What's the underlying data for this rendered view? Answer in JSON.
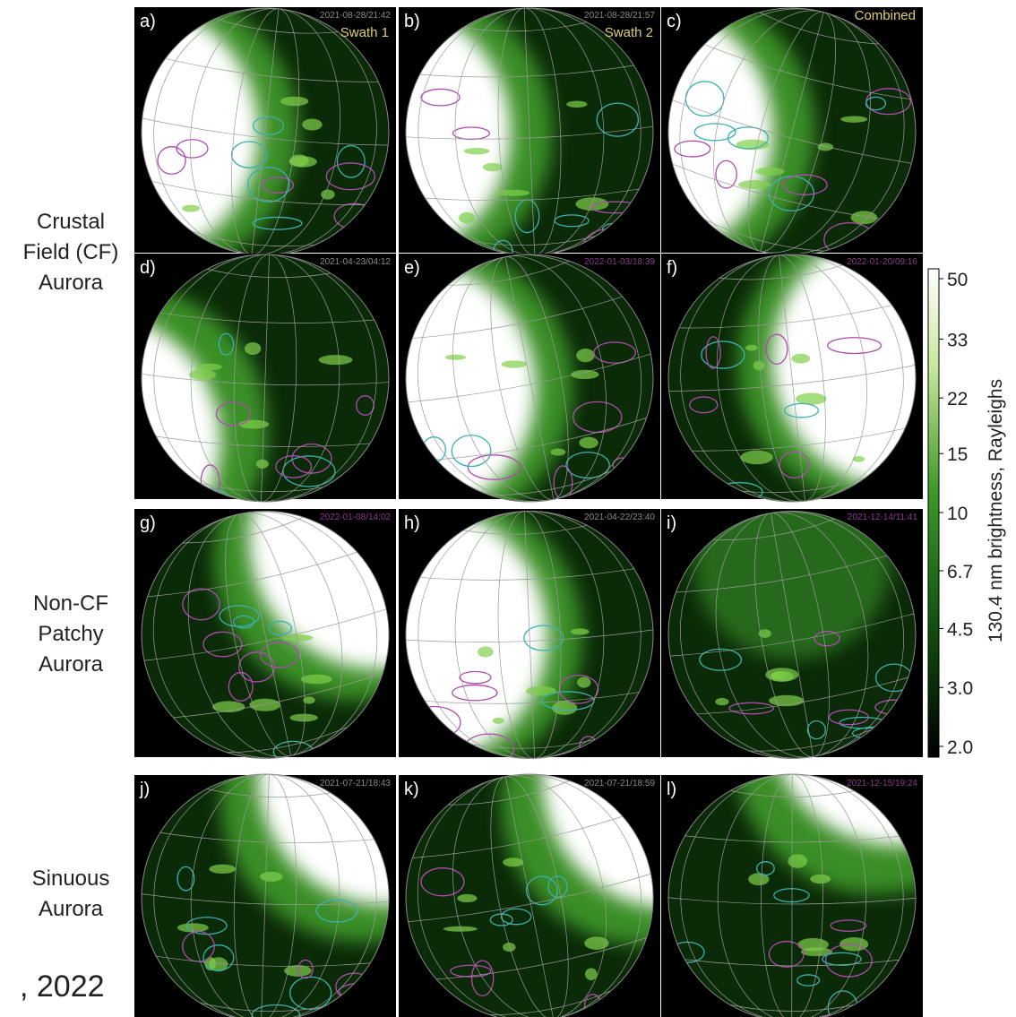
{
  "row_labels": [
    "Crustal Field (CF) Aurora",
    "Non-CF Patchy Aurora",
    "Sinuous Aurora"
  ],
  "footer": ", 2022",
  "panels": [
    {
      "label": "a)",
      "time": "2021-08-28/21:42",
      "note": "Swath 1",
      "time_color": "#8a8a8a"
    },
    {
      "label": "b)",
      "time": "2021-08-28/21:57",
      "note": "Swath 2",
      "time_color": "#8a8a8a"
    },
    {
      "label": "c)",
      "note": "Combined"
    },
    {
      "label": "d)",
      "time": "2021-04-23/04:12",
      "time_color": "#8a8a8a"
    },
    {
      "label": "e)",
      "time": "2022-01-03/18:39",
      "time_color": "#8a3a8a"
    },
    {
      "label": "f)",
      "time": "2022-01-20/09:16",
      "time_color": "#8a3a8a"
    },
    {
      "label": "g)",
      "time": "2022-01-08/14:02",
      "time_color": "#8a3a8a"
    },
    {
      "label": "h)",
      "time": "2021-04-22/23:40",
      "time_color": "#8a8a8a"
    },
    {
      "label": "i)",
      "time": "2021-12-14/11:41",
      "time_color": "#8a3a8a"
    },
    {
      "label": "j)",
      "time": "2021-07-21/18:43",
      "time_color": "#8a8a8a"
    },
    {
      "label": "k)",
      "time": "2021-07-21/18:59",
      "time_color": "#8a8a8a"
    },
    {
      "label": "l)",
      "time": "2021-12-15/19:24",
      "time_color": "#8a3a8a"
    }
  ],
  "colorbar": {
    "label": "130.4 nm brightness, Rayleighs",
    "scale": "log",
    "lim": [
      2,
      50
    ],
    "ticks": [
      50,
      33,
      22,
      15,
      10,
      6.7,
      4.5,
      {
        "value": 3,
        "label": "3.0"
      },
      {
        "value": 2,
        "label": "2.0"
      }
    ]
  }
}
